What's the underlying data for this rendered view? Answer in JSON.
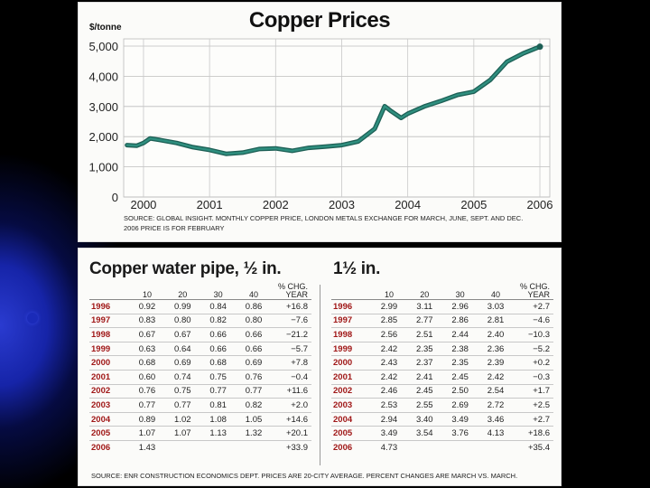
{
  "chart_data": [
    {
      "type": "line",
      "title": "Copper Prices",
      "ylabel": "$/tonne",
      "xlabel": "",
      "ylim": [
        0,
        5000
      ],
      "yticks": [
        "5,000",
        "4,000",
        "3,000",
        "2,000",
        "1,000",
        "0"
      ],
      "xticks": [
        "2000",
        "2001",
        "2002",
        "2003",
        "2004",
        "2005",
        "2006"
      ],
      "xlim": [
        1999.7,
        2006.15
      ],
      "grid": true,
      "color": "#2f8f7f",
      "series": [
        {
          "x": [
            1999.75,
            1999.9,
            2000.0,
            2000.1,
            2000.25,
            2000.5,
            2000.75,
            2001.0,
            2001.25,
            2001.5,
            2001.75,
            2002.0,
            2002.25,
            2002.5,
            2002.75,
            2003.0,
            2003.25,
            2003.5,
            2003.65,
            2003.75,
            2003.9,
            2004.0,
            2004.25,
            2004.5,
            2004.75,
            2005.0,
            2005.25,
            2005.5,
            2005.75,
            2006.0
          ],
          "y": [
            1720,
            1700,
            1790,
            1940,
            1890,
            1790,
            1650,
            1560,
            1430,
            1470,
            1590,
            1610,
            1530,
            1630,
            1670,
            1720,
            1840,
            2260,
            3010,
            2840,
            2620,
            2760,
            3000,
            3180,
            3380,
            3490,
            3880,
            4480,
            4760,
            4980
          ]
        }
      ],
      "source": "Source: Global Insight. Monthly copper price, London Metals Exchange for March, June, Sept. and Dec. 2006 price is for February"
    },
    {
      "type": "table",
      "title": "Copper water pipe, ½ in.",
      "columns": [
        "",
        "10",
        "20",
        "30",
        "40",
        "% CHG. YEAR"
      ],
      "rows": [
        [
          "1996",
          "0.92",
          "0.99",
          "0.84",
          "0.86",
          "+16.8"
        ],
        [
          "1997",
          "0.83",
          "0.80",
          "0.82",
          "0.80",
          "−7.6"
        ],
        [
          "1998",
          "0.67",
          "0.67",
          "0.66",
          "0.66",
          "−21.2"
        ],
        [
          "1999",
          "0.63",
          "0.64",
          "0.66",
          "0.66",
          "−5.7"
        ],
        [
          "2000",
          "0.68",
          "0.69",
          "0.68",
          "0.69",
          "+7.8"
        ],
        [
          "2001",
          "0.60",
          "0.74",
          "0.75",
          "0.76",
          "−0.4"
        ],
        [
          "2002",
          "0.76",
          "0.75",
          "0.77",
          "0.77",
          "+11.6"
        ],
        [
          "2003",
          "0.77",
          "0.77",
          "0.81",
          "0.82",
          "+2.0"
        ],
        [
          "2004",
          "0.89",
          "1.02",
          "1.08",
          "1.05",
          "+14.6"
        ],
        [
          "2005",
          "1.07",
          "1.07",
          "1.13",
          "1.32",
          "+20.1"
        ],
        [
          "2006",
          "1.43",
          "",
          "",
          "",
          "+33.9"
        ]
      ]
    },
    {
      "type": "table",
      "title": "1½ in.",
      "columns": [
        "",
        "10",
        "20",
        "30",
        "40",
        "% CHG. YEAR"
      ],
      "rows": [
        [
          "1996",
          "2.99",
          "3.11",
          "2.96",
          "3.03",
          "+2.7"
        ],
        [
          "1997",
          "2.85",
          "2.77",
          "2.86",
          "2.81",
          "−4.6"
        ],
        [
          "1998",
          "2.56",
          "2.51",
          "2.44",
          "2.40",
          "−10.3"
        ],
        [
          "1999",
          "2.42",
          "2.35",
          "2.38",
          "2.36",
          "−5.2"
        ],
        [
          "2000",
          "2.43",
          "2.37",
          "2.35",
          "2.39",
          "+0.2"
        ],
        [
          "2001",
          "2.42",
          "2.41",
          "2.45",
          "2.42",
          "−0.3"
        ],
        [
          "2002",
          "2.46",
          "2.45",
          "2.50",
          "2.54",
          "+1.7"
        ],
        [
          "2003",
          "2.53",
          "2.55",
          "2.69",
          "2.72",
          "+2.5"
        ],
        [
          "2004",
          "2.94",
          "3.40",
          "3.49",
          "3.46",
          "+2.7"
        ],
        [
          "2005",
          "3.49",
          "3.54",
          "3.76",
          "4.13",
          "+18.6"
        ],
        [
          "2006",
          "4.73",
          "",
          "",
          "",
          "+35.4"
        ]
      ],
      "source": "Source: ENR Construction Economics Dept. Prices are 20-city average. Percent changes are March vs. March."
    }
  ]
}
